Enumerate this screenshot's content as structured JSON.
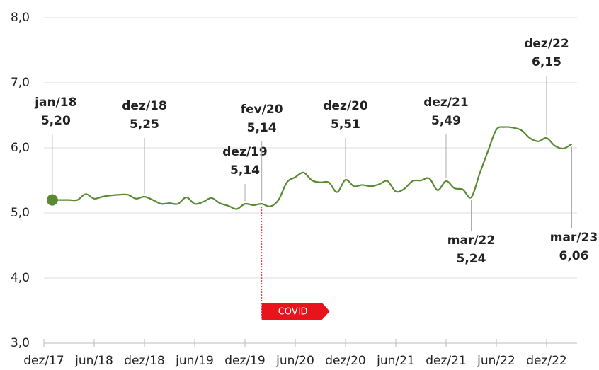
{
  "chart_data": {
    "type": "line",
    "categories": [
      "dez/17",
      null,
      null,
      null,
      null,
      null,
      "jun/18",
      null,
      null,
      null,
      null,
      null,
      "dez/18",
      null,
      null,
      null,
      null,
      null,
      "jun/19",
      null,
      null,
      null,
      null,
      null,
      "dez/19",
      null,
      null,
      null,
      null,
      null,
      "jun/20",
      null,
      null,
      null,
      null,
      null,
      "dez/20",
      null,
      null,
      null,
      null,
      null,
      "jun/21",
      null,
      null,
      null,
      null,
      null,
      "dez/21",
      null,
      null,
      null,
      null,
      null,
      "jun/22",
      null,
      null,
      null,
      null,
      null,
      "dez/22",
      null,
      null,
      null
    ],
    "series": [
      {
        "color": "#5a8a32",
        "values": [
          null,
          5.2,
          5.2,
          5.2,
          5.2,
          5.29,
          5.22,
          5.25,
          5.27,
          5.28,
          5.28,
          5.22,
          5.25,
          5.2,
          5.14,
          5.15,
          5.14,
          5.24,
          5.14,
          5.17,
          5.23,
          5.15,
          5.11,
          5.06,
          5.14,
          5.12,
          5.14,
          5.1,
          5.2,
          5.47,
          5.55,
          5.62,
          5.5,
          5.47,
          5.47,
          5.32,
          5.51,
          5.41,
          5.43,
          5.41,
          5.44,
          5.49,
          5.33,
          5.37,
          5.49,
          5.5,
          5.53,
          5.35,
          5.49,
          5.38,
          5.36,
          5.24,
          5.6,
          5.95,
          6.28,
          6.32,
          6.31,
          6.27,
          6.15,
          6.1,
          6.15,
          6.03,
          5.99,
          6.06
        ],
        "point_labels": [
          null,
          "jan/18",
          null,
          null,
          null,
          null,
          null,
          null,
          null,
          null,
          null,
          null,
          "dez/18",
          null,
          null,
          null,
          null,
          null,
          null,
          null,
          null,
          null,
          null,
          null,
          "dez/19",
          null,
          "fev/20",
          null,
          null,
          null,
          null,
          null,
          null,
          null,
          null,
          null,
          "dez/20",
          null,
          null,
          null,
          null,
          null,
          null,
          null,
          null,
          null,
          null,
          null,
          "dez/21",
          null,
          null,
          "mar/22",
          null,
          null,
          null,
          null,
          null,
          null,
          null,
          null,
          "dez/22",
          null,
          null,
          "mar/23"
        ],
        "value_labels": [
          null,
          "5,20",
          null,
          null,
          null,
          null,
          null,
          null,
          null,
          null,
          null,
          null,
          "5,25",
          null,
          null,
          null,
          null,
          null,
          null,
          null,
          null,
          null,
          null,
          null,
          "5,14",
          null,
          "5,14",
          null,
          null,
          null,
          null,
          null,
          null,
          null,
          null,
          null,
          "5,51",
          null,
          null,
          null,
          null,
          null,
          null,
          null,
          null,
          null,
          null,
          null,
          "5,49",
          null,
          null,
          "5,24",
          null,
          null,
          null,
          null,
          null,
          null,
          null,
          null,
          "6,15",
          null,
          null,
          "6,06"
        ]
      }
    ],
    "annotation": "COVID",
    "annotation_color": "#e8141c",
    "ylim": [
      3,
      8
    ],
    "yticks": [
      {
        "value": 3,
        "label": "3,0"
      },
      {
        "value": 4,
        "label": "4,0"
      },
      {
        "value": 5,
        "label": "5,0"
      },
      {
        "value": 6,
        "label": "6,0"
      },
      {
        "value": 7,
        "label": "7,0"
      },
      {
        "value": 8,
        "label": "8,0"
      }
    ],
    "grid": true
  }
}
